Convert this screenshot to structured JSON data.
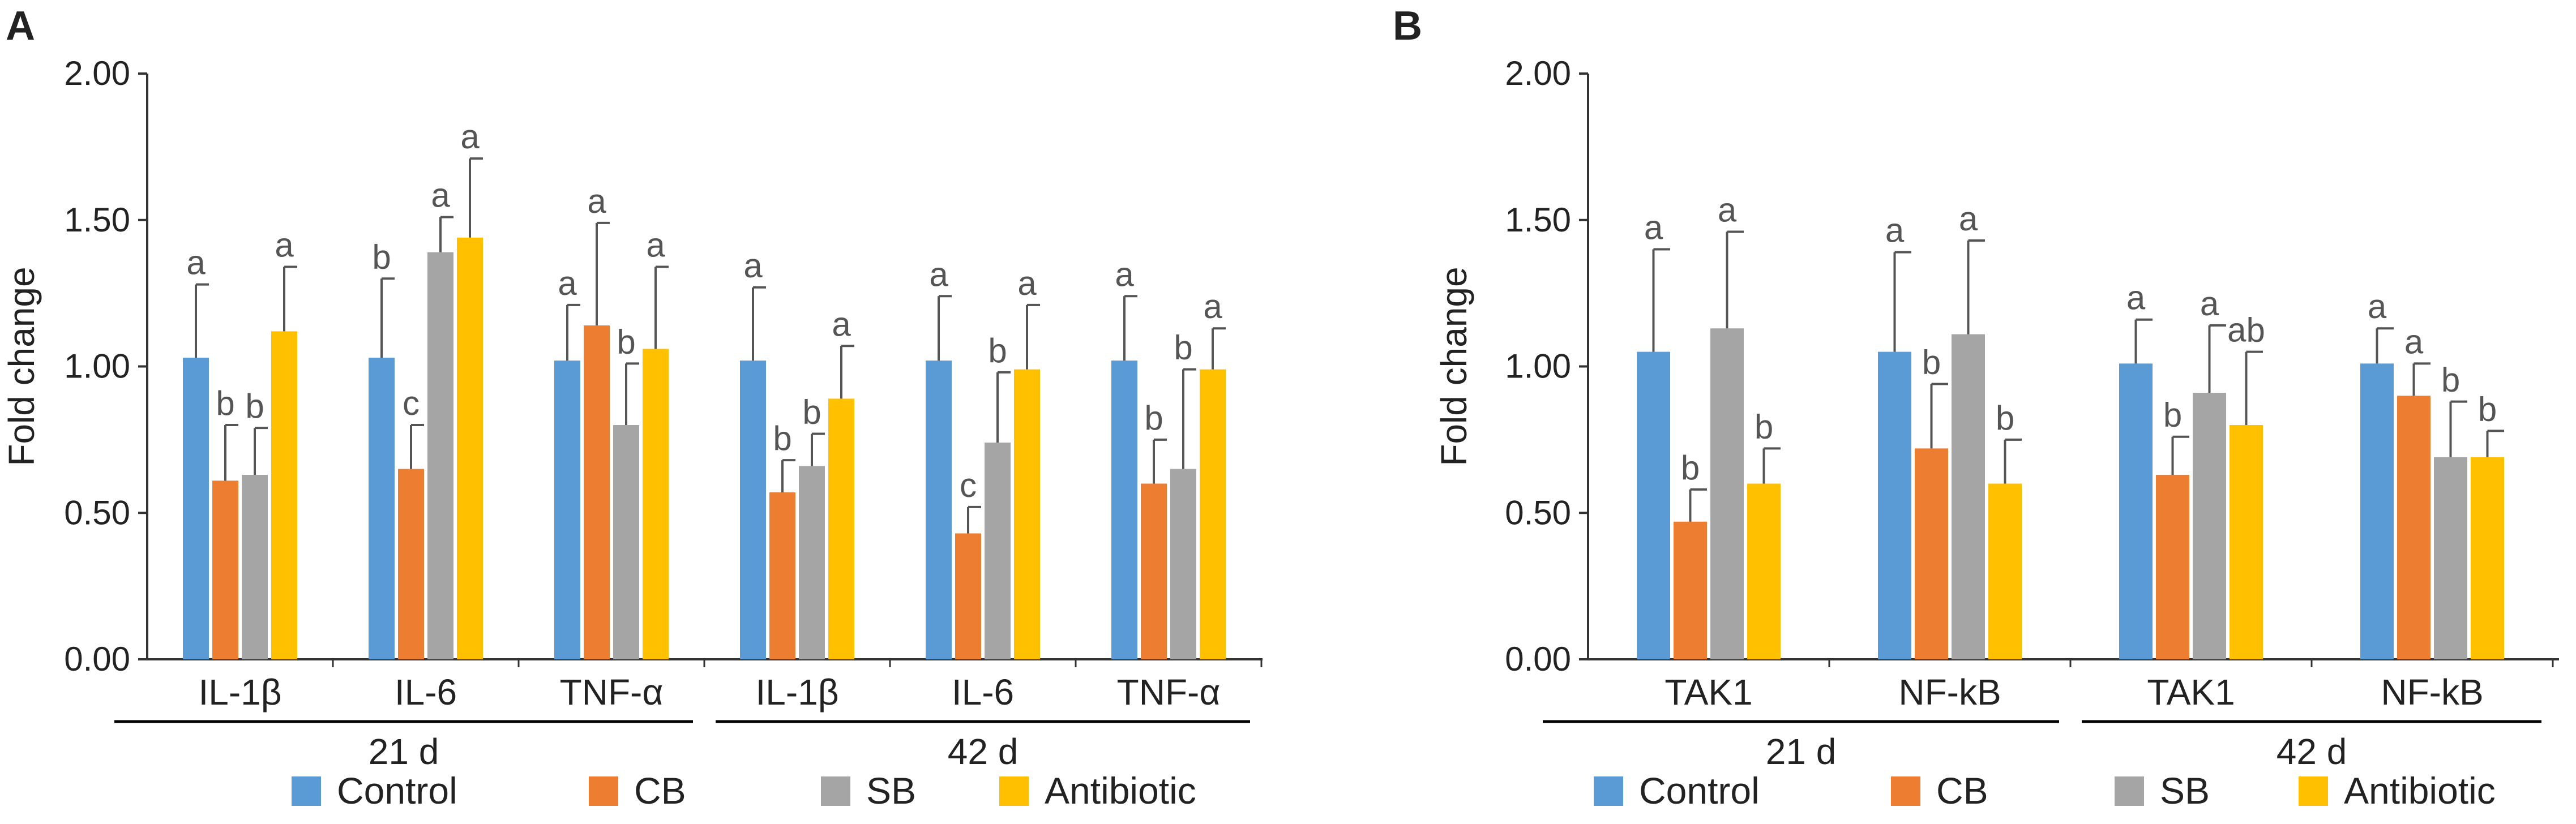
{
  "colors": {
    "Control": "#5b9bd5",
    "CB": "#ed7d31",
    "SB": "#a5a5a5",
    "Antibiotic": "#ffc000",
    "axis": "#333333",
    "error": "#555555"
  },
  "chart_data": [
    {
      "panel": "A",
      "type": "bar",
      "ylabel": "Fold change",
      "ylim": [
        0,
        2
      ],
      "yticks": [
        "0.00",
        "0.50",
        "1.00",
        "1.50",
        "2.00"
      ],
      "categories": [
        "IL-1β",
        "IL-6",
        "TNF-α",
        "IL-1β",
        "IL-6",
        "TNF-α"
      ],
      "groups": [
        {
          "label": "21 d",
          "start": 0,
          "end": 2
        },
        {
          "label": "42 d",
          "start": 3,
          "end": 5
        }
      ],
      "series": [
        {
          "name": "Control",
          "values": [
            1.03,
            1.03,
            1.02,
            1.02,
            1.02,
            1.02
          ],
          "errors": [
            0.25,
            0.27,
            0.19,
            0.25,
            0.22,
            0.22
          ],
          "letters": [
            "a",
            "b",
            "a",
            "a",
            "a",
            "a"
          ]
        },
        {
          "name": "CB",
          "values": [
            0.61,
            0.65,
            1.14,
            0.57,
            0.43,
            0.6
          ],
          "errors": [
            0.19,
            0.15,
            0.35,
            0.11,
            0.09,
            0.15
          ],
          "letters": [
            "b",
            "c",
            "a",
            "b",
            "c",
            "b"
          ]
        },
        {
          "name": "SB",
          "values": [
            0.63,
            1.39,
            0.8,
            0.66,
            0.74,
            0.65
          ],
          "errors": [
            0.16,
            0.12,
            0.21,
            0.11,
            0.24,
            0.34
          ],
          "letters": [
            "b",
            "a",
            "b",
            "b",
            "b",
            "b"
          ]
        },
        {
          "name": "Antibiotic",
          "values": [
            1.12,
            1.44,
            1.06,
            0.89,
            0.99,
            0.99
          ],
          "errors": [
            0.22,
            0.27,
            0.28,
            0.18,
            0.22,
            0.14
          ],
          "letters": [
            "a",
            "a",
            "a",
            "a",
            "a",
            "a"
          ]
        }
      ]
    },
    {
      "panel": "B",
      "type": "bar",
      "ylabel": "Fold change",
      "ylim": [
        0,
        2
      ],
      "yticks": [
        "0.00",
        "0.50",
        "1.00",
        "1.50",
        "2.00"
      ],
      "categories": [
        "TAK1",
        "NF-kB",
        "TAK1",
        "NF-kB"
      ],
      "groups": [
        {
          "label": "21 d",
          "start": 0,
          "end": 1
        },
        {
          "label": "42 d",
          "start": 2,
          "end": 3
        }
      ],
      "series": [
        {
          "name": "Control",
          "values": [
            1.05,
            1.05,
            1.01,
            1.01
          ],
          "errors": [
            0.35,
            0.34,
            0.15,
            0.12
          ],
          "letters": [
            "a",
            "a",
            "a",
            "a"
          ]
        },
        {
          "name": "CB",
          "values": [
            0.47,
            0.72,
            0.63,
            0.9
          ],
          "errors": [
            0.11,
            0.22,
            0.13,
            0.11
          ],
          "letters": [
            "b",
            "b",
            "b",
            "a"
          ]
        },
        {
          "name": "SB",
          "values": [
            1.13,
            1.11,
            0.91,
            0.69
          ],
          "errors": [
            0.33,
            0.32,
            0.23,
            0.19
          ],
          "letters": [
            "a",
            "a",
            "a",
            "b"
          ]
        },
        {
          "name": "Antibiotic",
          "values": [
            0.6,
            0.6,
            0.8,
            0.69
          ],
          "errors": [
            0.12,
            0.15,
            0.25,
            0.09
          ],
          "letters": [
            "b",
            "b",
            "ab",
            "b"
          ]
        }
      ]
    }
  ]
}
